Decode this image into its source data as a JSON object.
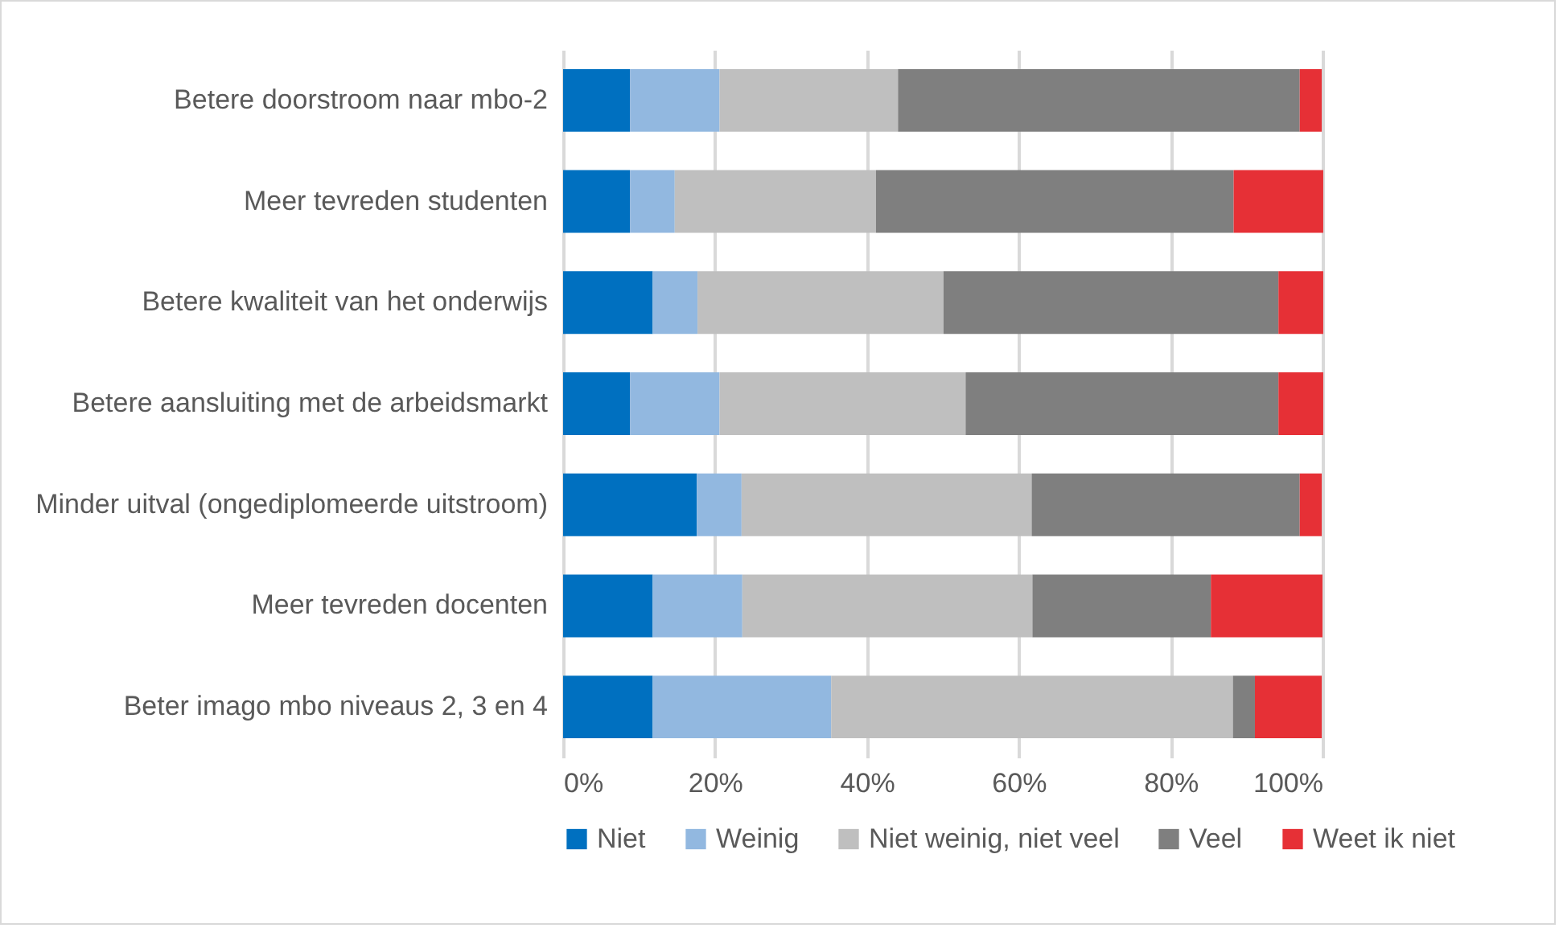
{
  "chart_data": {
    "type": "bar",
    "orientation": "horizontal",
    "stacked": true,
    "categories": [
      "Betere doorstroom naar mbo-2",
      "Meer tevreden studenten",
      "Betere kwaliteit van het onderwijs",
      "Betere aansluiting met de arbeidsmarkt",
      "Minder uitval (ongediplomeerde uitstroom)",
      "Meer tevreden docenten",
      "Beter imago mbo niveaus 2, 3 en 4"
    ],
    "series": [
      {
        "name": "Niet",
        "color": "#0070c0",
        "values": [
          8.8,
          8.8,
          11.8,
          8.8,
          17.6,
          11.8,
          11.8
        ]
      },
      {
        "name": "Weinig",
        "color": "#92b8e0",
        "values": [
          11.8,
          5.9,
          5.9,
          11.8,
          5.9,
          11.8,
          23.5
        ]
      },
      {
        "name": "Niet weinig, niet veel",
        "color": "#bfbfbf",
        "values": [
          23.5,
          26.5,
          32.4,
          32.4,
          38.2,
          38.2,
          52.9
        ]
      },
      {
        "name": "Veel",
        "color": "#7f7f7f",
        "values": [
          52.9,
          47.1,
          44.1,
          41.2,
          35.3,
          23.5,
          2.9
        ]
      },
      {
        "name": "Weet ik niet",
        "color": "#e63036",
        "values": [
          2.9,
          11.8,
          5.9,
          5.9,
          2.9,
          14.7,
          8.8
        ]
      }
    ],
    "xlim": [
      0,
      100
    ],
    "xticks": [
      {
        "value": 0,
        "label": "0%"
      },
      {
        "value": 20,
        "label": "20%"
      },
      {
        "value": 40,
        "label": "40%"
      },
      {
        "value": 60,
        "label": "60%"
      },
      {
        "value": 80,
        "label": "80%"
      },
      {
        "value": 100,
        "label": "100%"
      }
    ],
    "grid": "x",
    "legend": "bottom"
  }
}
